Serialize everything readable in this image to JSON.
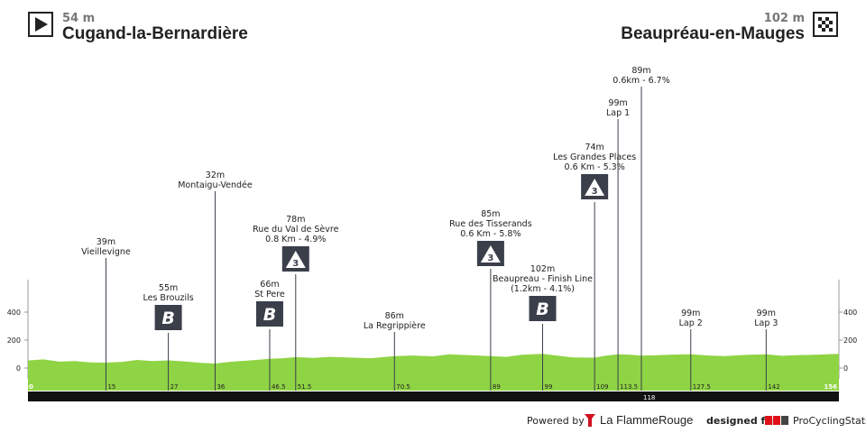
{
  "header": {
    "start_elevation": "54 m",
    "start_name": "Cugand-la-Bernardière",
    "finish_elevation": "102 m",
    "finish_name": "Beaupréau-en-Mauges",
    "start_icon": "play-flag-icon",
    "finish_icon": "checkered-flag-icon"
  },
  "colors": {
    "terrain": "#8fd444",
    "baseline": "#111111",
    "marker": "#3a3f4a",
    "label": "#222222",
    "tick": "#777777"
  },
  "chart_data": {
    "type": "area",
    "xlim": [
      0,
      156
    ],
    "ylim": [
      0,
      400
    ],
    "y_ticks_left": [
      400,
      200,
      0
    ],
    "y_ticks_right": [
      400,
      200,
      0
    ],
    "distance_ticks": [
      "0",
      "15",
      "27",
      "36",
      "46.5",
      "51.5",
      "70.5",
      "89",
      "99",
      "109",
      "113.5",
      "118",
      "127.5",
      "142",
      "156"
    ],
    "profile": {
      "x": [
        0,
        3,
        6,
        9,
        12,
        15,
        18,
        21,
        24,
        27,
        30,
        33,
        36,
        39,
        42,
        46.5,
        49,
        51.5,
        55,
        58,
        62,
        66,
        70.5,
        74,
        78,
        81,
        85,
        89,
        92,
        95,
        99,
        102,
        105,
        109,
        111,
        113.5,
        116,
        118,
        121,
        124,
        127.5,
        131,
        134,
        138,
        142,
        145,
        148,
        152,
        156
      ],
      "y": [
        54,
        62,
        46,
        50,
        40,
        39,
        44,
        58,
        50,
        55,
        48,
        38,
        32,
        45,
        52,
        66,
        70,
        78,
        72,
        80,
        75,
        70,
        86,
        90,
        84,
        98,
        92,
        85,
        80,
        95,
        102,
        88,
        76,
        74,
        88,
        99,
        95,
        89,
        92,
        96,
        99,
        90,
        85,
        94,
        99,
        88,
        92,
        96,
        102
      ]
    },
    "markers": [
      {
        "km": 15,
        "label_y": "39m",
        "label_name": "Vieillevigne",
        "badge": ""
      },
      {
        "km": 27,
        "label_y": "55m",
        "label_name": "Les Brouzils",
        "badge": "B"
      },
      {
        "km": 36,
        "label_y": "32m",
        "label_name": "Montaigu-Vendée",
        "badge": ""
      },
      {
        "km": 46.5,
        "label_y": "66m",
        "label_name": "St Pere",
        "badge": "B"
      },
      {
        "km": 51.5,
        "label_y": "78m",
        "label_name": "Rue du Val de Sèvre",
        "label_extra": "0.8 Km - 4.9%",
        "badge": "3"
      },
      {
        "km": 70.5,
        "label_y": "86m",
        "label_name": "La Regrippière",
        "badge": ""
      },
      {
        "km": 89,
        "label_y": "85m",
        "label_name": "Rue des Tisserands",
        "label_extra": "0.6 Km - 5.8%",
        "badge": "3"
      },
      {
        "km": 99,
        "label_y": "102m",
        "label_name": "Beaupreau - Finish Line",
        "label_extra": "(1.2km - 4.1%)",
        "badge": "B"
      },
      {
        "km": 109,
        "label_y": "74m",
        "label_name": "Les Grandes Places",
        "label_extra": "0.6 Km - 5.3%",
        "badge": "3"
      },
      {
        "km": 113.5,
        "label_y": "99m",
        "label_name": "Lap 1",
        "badge": ""
      },
      {
        "km": 118,
        "label_y": "89m",
        "label_name": "0.6km - 6.7%",
        "badge": ""
      },
      {
        "km": 127.5,
        "label_y": "99m",
        "label_name": "Lap 2",
        "badge": ""
      },
      {
        "km": 142,
        "label_y": "99m",
        "label_name": "Lap 3",
        "badge": ""
      }
    ]
  },
  "footer": {
    "powered_by": "Powered by",
    "lfr_icon": "flame-rouge-icon",
    "lfr_name": "La FlammeRouge",
    "designed_for": "designed for",
    "pcs_logo": "pcs-logo",
    "pcs_name": "ProCyclingStats"
  }
}
